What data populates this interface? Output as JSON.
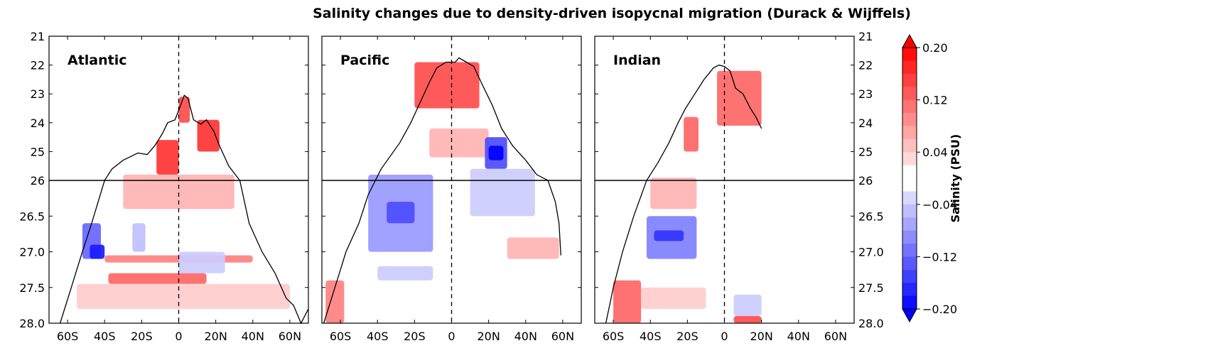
{
  "title": "Salinity changes due to density-driven isopycnal migration (Durack & Wijffels)",
  "chart_data": {
    "type": "heatmap",
    "title": "Salinity changes due to density-driven isopycnal migration (Durack & Wijffels)",
    "xlabel": "",
    "ylabel": "",
    "panels": [
      "Atlantic",
      "Pacific",
      "Indian"
    ],
    "x_ticks": [
      "60S",
      "40S",
      "20S",
      "0",
      "20N",
      "40N",
      "60N"
    ],
    "x_tick_values": [
      -60,
      -40,
      -20,
      0,
      20,
      40,
      60
    ],
    "xlim": [
      -70,
      70
    ],
    "y_ticks_upper": [
      "21",
      "22",
      "23",
      "24",
      "25",
      "26"
    ],
    "y_ticks_lower": [
      "26.5",
      "27.0",
      "27.5",
      "28.0"
    ],
    "y_tick_values_upper": [
      21,
      22,
      23,
      24,
      25,
      26
    ],
    "y_tick_values_lower": [
      26.5,
      27.0,
      27.5,
      28.0
    ],
    "ylim": [
      21,
      28
    ],
    "y_scale": "split: 21-26 upper section, 26-28 lower section",
    "colorbar": {
      "label": "Salinity (PSU)",
      "tick_labels": [
        "0.20",
        "0.12",
        "0.04",
        "−0.04",
        "−0.12",
        "−0.20"
      ],
      "tick_values": [
        0.2,
        0.12,
        0.04,
        -0.04,
        -0.12,
        -0.2
      ],
      "range": [
        -0.2,
        0.2
      ],
      "extend": "both",
      "colormap": "blue-white-red",
      "positive_color": "#ff0000",
      "negative_color": "#0000ff"
    },
    "reference_lines": {
      "equator_dashed_x": 0,
      "sigma_split_y": 26
    },
    "outcrop_outline": {
      "Atlantic": [
        [
          -64,
          28.0
        ],
        [
          -58,
          27.5
        ],
        [
          -52,
          27.0
        ],
        [
          -47,
          26.6
        ],
        [
          -40,
          26.0
        ],
        [
          -36,
          25.6
        ],
        [
          -30,
          25.3
        ],
        [
          -22,
          25.05
        ],
        [
          -17,
          25.1
        ],
        [
          -13,
          24.8
        ],
        [
          -9,
          24.4
        ],
        [
          -6,
          24.0
        ],
        [
          -2,
          23.9
        ],
        [
          1,
          23.4
        ],
        [
          3,
          23.05
        ],
        [
          5,
          23.15
        ],
        [
          8,
          23.9
        ],
        [
          12,
          24.05
        ],
        [
          15,
          23.9
        ],
        [
          19,
          24.3
        ],
        [
          22,
          24.8
        ],
        [
          27,
          25.5
        ],
        [
          33,
          26.0
        ],
        [
          38,
          26.6
        ],
        [
          45,
          27.0
        ],
        [
          52,
          27.3
        ],
        [
          58,
          27.65
        ],
        [
          62,
          27.75
        ],
        [
          66,
          28.0
        ],
        [
          69,
          27.85
        ],
        [
          70,
          27.8
        ]
      ],
      "Pacific": [
        [
          -69,
          28.0
        ],
        [
          -63,
          27.5
        ],
        [
          -57,
          27.0
        ],
        [
          -50,
          26.6
        ],
        [
          -45,
          26.2
        ],
        [
          -38,
          25.6
        ],
        [
          -28,
          24.7
        ],
        [
          -22,
          24.0
        ],
        [
          -17,
          23.3
        ],
        [
          -12,
          22.6
        ],
        [
          -8,
          22.1
        ],
        [
          -3,
          21.9
        ],
        [
          2,
          21.9
        ],
        [
          4,
          21.75
        ],
        [
          8,
          21.9
        ],
        [
          12,
          22.05
        ],
        [
          16,
          22.6
        ],
        [
          22,
          23.4
        ],
        [
          27,
          24.2
        ],
        [
          33,
          24.8
        ],
        [
          40,
          25.3
        ],
        [
          46,
          25.8
        ],
        [
          52,
          26.0
        ],
        [
          56,
          26.3
        ],
        [
          58,
          26.6
        ],
        [
          59,
          27.05
        ]
      ],
      "Indian": [
        [
          -64,
          28.0
        ],
        [
          -60,
          27.5
        ],
        [
          -55,
          27.0
        ],
        [
          -49,
          26.5
        ],
        [
          -42,
          26.0
        ],
        [
          -36,
          25.4
        ],
        [
          -30,
          24.7
        ],
        [
          -25,
          24.0
        ],
        [
          -21,
          23.5
        ],
        [
          -16,
          23.0
        ],
        [
          -11,
          22.5
        ],
        [
          -6,
          22.1
        ],
        [
          -3,
          22.0
        ],
        [
          0,
          22.05
        ],
        [
          3,
          22.2
        ],
        [
          6,
          22.8
        ],
        [
          10,
          23.0
        ],
        [
          14,
          23.5
        ],
        [
          17,
          23.8
        ],
        [
          20,
          24.2
        ]
      ]
    },
    "anomaly_patches": {
      "Atlantic": [
        {
          "lat": [
            -12,
            0
          ],
          "sigma": [
            24.6,
            25.8
          ],
          "value": 0.16
        },
        {
          "lat": [
            10,
            22
          ],
          "sigma": [
            23.9,
            25.0
          ],
          "value": 0.16
        },
        {
          "lat": [
            0,
            6
          ],
          "sigma": [
            23.1,
            24.0
          ],
          "value": 0.14
        },
        {
          "lat": [
            -30,
            30
          ],
          "sigma": [
            25.8,
            26.4
          ],
          "value": 0.06
        },
        {
          "lat": [
            -52,
            -42
          ],
          "sigma": [
            26.6,
            27.1
          ],
          "value": -0.12
        },
        {
          "lat": [
            -48,
            -40
          ],
          "sigma": [
            26.9,
            27.1
          ],
          "value": -0.18
        },
        {
          "lat": [
            -25,
            -18
          ],
          "sigma": [
            26.6,
            27.0
          ],
          "value": -0.05
        },
        {
          "lat": [
            -40,
            40
          ],
          "sigma": [
            27.05,
            27.15
          ],
          "value": 0.1
        },
        {
          "lat": [
            -38,
            15
          ],
          "sigma": [
            27.3,
            27.45
          ],
          "value": 0.12
        },
        {
          "lat": [
            -55,
            60
          ],
          "sigma": [
            27.45,
            27.8
          ],
          "value": 0.04
        },
        {
          "lat": [
            0,
            25
          ],
          "sigma": [
            27.0,
            27.3
          ],
          "value": -0.04
        }
      ],
      "Pacific": [
        {
          "lat": [
            -20,
            15
          ],
          "sigma": [
            21.9,
            23.5
          ],
          "value": 0.14
        },
        {
          "lat": [
            -12,
            20
          ],
          "sigma": [
            24.2,
            25.2
          ],
          "value": 0.06
        },
        {
          "lat": [
            -45,
            -10
          ],
          "sigma": [
            25.8,
            27.0
          ],
          "value": -0.08
        },
        {
          "lat": [
            -35,
            -20
          ],
          "sigma": [
            26.3,
            26.6
          ],
          "value": -0.14
        },
        {
          "lat": [
            18,
            30
          ],
          "sigma": [
            24.5,
            25.6
          ],
          "value": -0.14
        },
        {
          "lat": [
            20,
            28
          ],
          "sigma": [
            24.8,
            25.3
          ],
          "value": -0.2
        },
        {
          "lat": [
            10,
            45
          ],
          "sigma": [
            25.6,
            26.5
          ],
          "value": -0.04
        },
        {
          "lat": [
            30,
            58
          ],
          "sigma": [
            26.8,
            27.1
          ],
          "value": 0.06
        },
        {
          "lat": [
            -68,
            -58
          ],
          "sigma": [
            27.4,
            28.0
          ],
          "value": 0.1
        },
        {
          "lat": [
            -40,
            -10
          ],
          "sigma": [
            27.2,
            27.4
          ],
          "value": -0.04
        }
      ],
      "Indian": [
        {
          "lat": [
            -22,
            -14
          ],
          "sigma": [
            23.8,
            25.0
          ],
          "value": 0.12
        },
        {
          "lat": [
            -4,
            20
          ],
          "sigma": [
            22.2,
            24.1
          ],
          "value": 0.12
        },
        {
          "lat": [
            -40,
            -15
          ],
          "sigma": [
            25.9,
            26.4
          ],
          "value": 0.06
        },
        {
          "lat": [
            -42,
            -15
          ],
          "sigma": [
            26.5,
            27.1
          ],
          "value": -0.1
        },
        {
          "lat": [
            -38,
            -22
          ],
          "sigma": [
            26.7,
            26.85
          ],
          "value": -0.16
        },
        {
          "lat": [
            -60,
            -45
          ],
          "sigma": [
            27.4,
            28.0
          ],
          "value": 0.12
        },
        {
          "lat": [
            -45,
            -10
          ],
          "sigma": [
            27.5,
            27.8
          ],
          "value": 0.04
        },
        {
          "lat": [
            5,
            20
          ],
          "sigma": [
            27.6,
            27.9
          ],
          "value": -0.04
        },
        {
          "lat": [
            5,
            20
          ],
          "sigma": [
            27.9,
            28.0
          ],
          "value": 0.14
        }
      ]
    }
  }
}
